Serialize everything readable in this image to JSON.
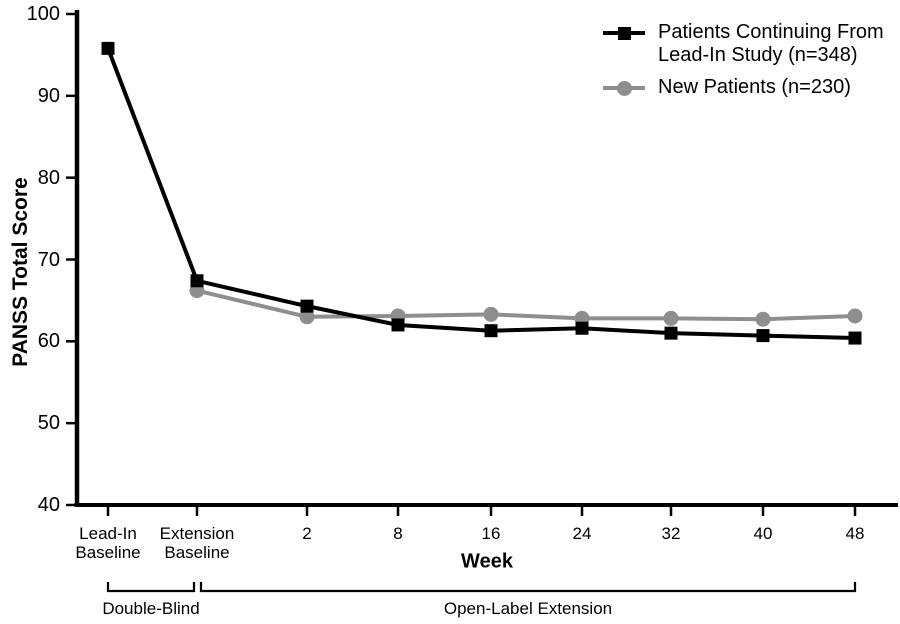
{
  "chart_data": {
    "type": "line",
    "title": "",
    "xlabel": "Week",
    "ylabel": "PANSS Total Score",
    "ylim": [
      40,
      100
    ],
    "y_ticks": [
      100,
      90,
      80,
      70,
      60,
      50,
      40
    ],
    "categories": [
      "Lead-In\nBaseline",
      "Extension\nBaseline",
      "2",
      "8",
      "16",
      "24",
      "32",
      "40",
      "48"
    ],
    "grid": false,
    "legend_position": "top-right",
    "colors": {
      "black_series": "#000000",
      "gray_series": "#8e8e8e",
      "axis": "#000000"
    },
    "series": [
      {
        "name": "Patients Continuing From\nLead-In Study (n=348)",
        "marker": "square",
        "color": "#000000",
        "values": [
          95.8,
          67.4,
          64.3,
          62.0,
          61.3,
          61.6,
          61.0,
          60.7,
          60.4
        ]
      },
      {
        "name": "New Patients (n=230)",
        "marker": "circle",
        "color": "#8e8e8e",
        "values": [
          null,
          66.2,
          63.0,
          63.1,
          63.3,
          62.8,
          62.8,
          62.7,
          63.1
        ]
      }
    ],
    "phases": [
      {
        "label": "Double-Blind",
        "from": 0,
        "to": 1
      },
      {
        "label": "Open-Label Extension",
        "from": 1,
        "to": 8
      }
    ]
  }
}
